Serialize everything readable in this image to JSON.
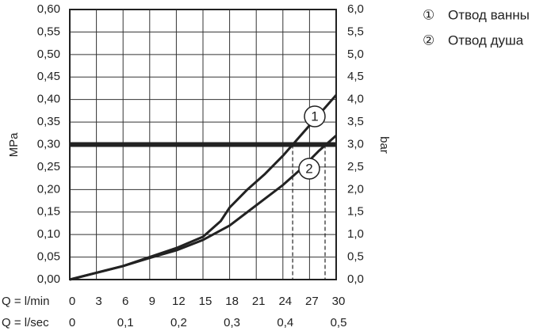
{
  "chart_data": {
    "type": "line",
    "x_label": "Q = l/min",
    "x2_label": "Q = l/sec",
    "y_label": "MPa",
    "y2_label": "bar",
    "xlim": [
      0,
      30
    ],
    "xticks": [
      0,
      3,
      6,
      9,
      12,
      15,
      18,
      21,
      24,
      27,
      30
    ],
    "x2lim": [
      0,
      0.5
    ],
    "x2ticks": [
      0,
      {
        "value": 0.1,
        "label": "0,1"
      },
      {
        "value": 0.2,
        "label": "0,2"
      },
      {
        "value": 0.3,
        "label": "0,3"
      },
      {
        "value": 0.4,
        "label": "0,4"
      },
      {
        "value": 0.5,
        "label": "0,5"
      }
    ],
    "ylim": [
      0,
      0.6
    ],
    "yticks": [
      {
        "value": 0,
        "label": "0,00"
      },
      {
        "value": 0.05,
        "label": "0,05"
      },
      {
        "value": 0.1,
        "label": "0,10"
      },
      {
        "value": 0.15,
        "label": "0,15"
      },
      {
        "value": 0.2,
        "label": "0,20"
      },
      {
        "value": 0.25,
        "label": "0,25"
      },
      {
        "value": 0.3,
        "label": "0,30"
      },
      {
        "value": 0.35,
        "label": "0,35"
      },
      {
        "value": 0.4,
        "label": "0,40"
      },
      {
        "value": 0.45,
        "label": "0,45"
      },
      {
        "value": 0.5,
        "label": "0,50"
      },
      {
        "value": 0.55,
        "label": "0,55"
      },
      {
        "value": 0.6,
        "label": "0,60"
      }
    ],
    "y2lim": [
      0,
      6
    ],
    "y2ticks": [
      {
        "value": 0,
        "label": "0,0"
      },
      {
        "value": 0.5,
        "label": "0,5"
      },
      {
        "value": 1,
        "label": "1,0"
      },
      {
        "value": 1.5,
        "label": "1,5"
      },
      {
        "value": 2,
        "label": "2,0"
      },
      {
        "value": 2.5,
        "label": "2,5"
      },
      {
        "value": 3,
        "label": "3,0"
      },
      {
        "value": 3.5,
        "label": "3,5"
      },
      {
        "value": 4,
        "label": "4,0"
      },
      {
        "value": 4.5,
        "label": "4,5"
      },
      {
        "value": 5,
        "label": "5,0"
      },
      {
        "value": 5.5,
        "label": "5,5"
      },
      {
        "value": 6,
        "label": "6,0"
      }
    ],
    "grid": true,
    "threshold": 0.3,
    "color": "#222222",
    "series": [
      {
        "name": "Отвод ванны",
        "symbol": "①",
        "label": "1",
        "crossing": 25.1,
        "x": [
          0,
          3,
          6,
          9,
          12,
          15,
          17,
          18,
          20,
          22,
          24,
          26,
          28,
          30
        ],
        "values": [
          0,
          0.015,
          0.03,
          0.05,
          0.07,
          0.095,
          0.13,
          0.16,
          0.2,
          0.235,
          0.275,
          0.32,
          0.365,
          0.41
        ]
      },
      {
        "name": "Отвод душа",
        "symbol": "②",
        "label": "2",
        "crossing": 28.75,
        "x": [
          0,
          3,
          6,
          9,
          12,
          15,
          18,
          20,
          22,
          24,
          26,
          28,
          30
        ],
        "values": [
          0,
          0.015,
          0.03,
          0.048,
          0.065,
          0.088,
          0.12,
          0.15,
          0.18,
          0.21,
          0.245,
          0.285,
          0.32
        ]
      }
    ]
  }
}
